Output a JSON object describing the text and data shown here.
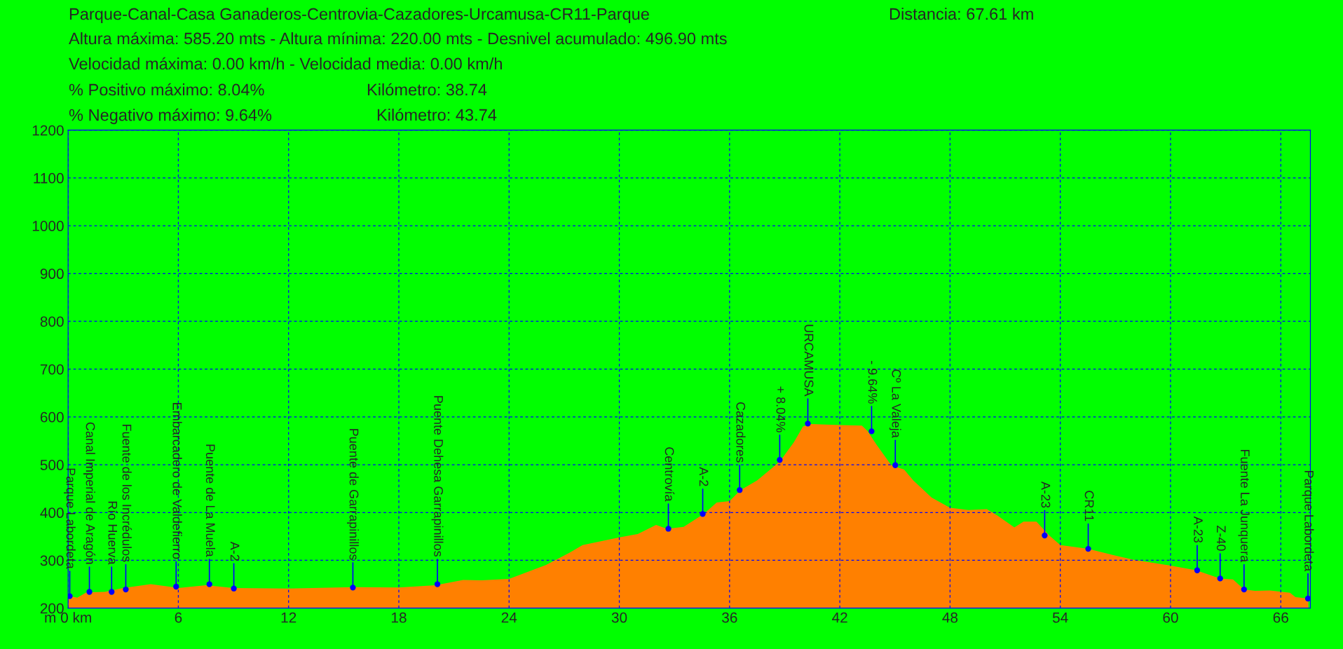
{
  "chart_data": {
    "type": "area",
    "title": "Parque-Canal-Casa Ganaderos-Centrovia-Cazadores-Urcamusa-CR11-Parque",
    "x": [
      0,
      0.5,
      1,
      2,
      3,
      4.5,
      5.5,
      6,
      7.5,
      9,
      12,
      15.5,
      18,
      20,
      21.5,
      22.5,
      24,
      26,
      27.3,
      28,
      30,
      31,
      32,
      32.6,
      33.5,
      34.6,
      35.3,
      36,
      36.6,
      37.5,
      38.5,
      38.8,
      39.5,
      40,
      40.4,
      42,
      43.2,
      43.5,
      44,
      44.8,
      45.5,
      46,
      47,
      48,
      49,
      50,
      50.6,
      51.5,
      52,
      52.7,
      53.4,
      54,
      55.5,
      57,
      58,
      60,
      61.4,
      62.7,
      63.4,
      64,
      64.6,
      65.4,
      66.5,
      66.8,
      67.5
    ],
    "series": [
      {
        "color": "#ff8000",
        "values": [
          226,
          222,
          233,
          234,
          242,
          250,
          245,
          242,
          248,
          242,
          241,
          244,
          243,
          248,
          259,
          258,
          261,
          290,
          316,
          332,
          348,
          355,
          374,
          366,
          370,
          397,
          421,
          424,
          447,
          467,
          499,
          510,
          547,
          580,
          585,
          583,
          582,
          571,
          542,
          499,
          490,
          467,
          431,
          410,
          405,
          407,
          393,
          369,
          381,
          381,
          352,
          332,
          324,
          310,
          301,
          289,
          279,
          262,
          260,
          239,
          236,
          237,
          232,
          223,
          220
        ]
      }
    ],
    "xlim": [
      0,
      67.61
    ],
    "ylim": [
      200,
      1200
    ],
    "xticks": [
      {
        "value": 0,
        "label": "m 0 km"
      },
      6,
      12,
      18,
      24,
      30,
      36,
      42,
      48,
      54,
      60,
      66
    ],
    "yticks": [
      200,
      300,
      400,
      500,
      600,
      700,
      800,
      900,
      1000,
      1100,
      1200
    ],
    "grid": true,
    "marker": "none",
    "annotations": [
      "Distancia: 67.61 km",
      "Altura máxima: 585.20 mts - Altura mínima: 220.00 mts - Desnivel acumulado: 496.90 mts",
      "Velocidad máxima: 0.00 km/h - Velocidad media: 0.00 km/h",
      "% Positivo máximo: 8.04%",
      "Kilómetro: 38.74",
      "% Negativo máximo: 9.64%",
      "Kilómetro: 43.74",
      {
        "text": "Parque Labordeta",
        "x": 0.09,
        "y": 225
      },
      {
        "text": "Canal Imperial de Aragón",
        "x": 1.16,
        "y": 234
      },
      {
        "text": "Río Huerva",
        "x": 2.37,
        "y": 234
      },
      {
        "text": "Fuente de los Incrédulos",
        "x": 3.14,
        "y": 239
      },
      {
        "text": "Embarcadero de Valdefierro",
        "x": 5.88,
        "y": 245
      },
      {
        "text": "Puente de La Muela",
        "x": 7.69,
        "y": 250
      },
      {
        "text": "A-2",
        "x": 9.02,
        "y": 241
      },
      {
        "text": "Puente de Garrapinillos",
        "x": 15.5,
        "y": 243
      },
      {
        "text": "Puente Dehesa Garrapinillos",
        "x": 20.1,
        "y": 250
      },
      {
        "text": "Centrovía",
        "x": 32.67,
        "y": 366
      },
      {
        "text": "A-2",
        "x": 34.54,
        "y": 397
      },
      {
        "text": "Cazadores",
        "x": 36.55,
        "y": 447
      },
      {
        "text": "+ 8.04%",
        "x": 38.73,
        "y": 510
      },
      {
        "text": "URCAMUSA",
        "x": 40.26,
        "y": 586
      },
      {
        "text": "- 9.64%",
        "x": 43.73,
        "y": 570
      },
      {
        "text": "Cº La Valeja",
        "x": 45.02,
        "y": 499
      },
      {
        "text": "A-23",
        "x": 53.15,
        "y": 352
      },
      {
        "text": "CR11",
        "x": 55.52,
        "y": 324
      },
      {
        "text": "A-23",
        "x": 61.45,
        "y": 279
      },
      {
        "text": "Z-40",
        "x": 62.7,
        "y": 262
      },
      {
        "text": "Fuente La Junquera",
        "x": 64.0,
        "y": 239
      },
      {
        "text": "Parque Labordeta",
        "x": 67.48,
        "y": 220
      }
    ]
  }
}
